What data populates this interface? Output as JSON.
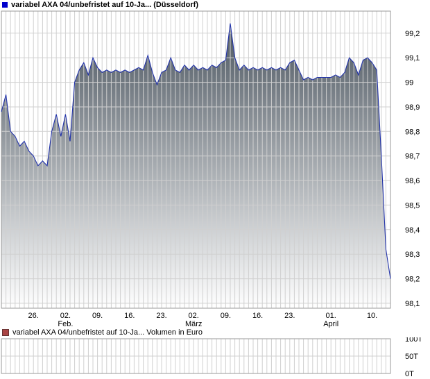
{
  "chart_data": [
    {
      "type": "area",
      "title": "variabel AXA 04/unbefristet auf 10-Ja... (Düsseldorf)",
      "xlabel": "",
      "ylabel": "",
      "grid": true,
      "legend_position": "top-left",
      "legend_color": "#0000cc",
      "line_color": "#2233aa",
      "fill_top": "#4d5761",
      "fill_bottom": "#ffffff",
      "grid_color": "#d0d0d0",
      "border_color": "#999999",
      "ylim": [
        98.08,
        99.29
      ],
      "x_domain_days": 85,
      "y_ticks": [
        {
          "v": 99.2,
          "label": "99,2"
        },
        {
          "v": 99.1,
          "label": "99,1"
        },
        {
          "v": 99.0,
          "label": "99"
        },
        {
          "v": 98.9,
          "label": "98,9"
        },
        {
          "v": 98.8,
          "label": "98,8"
        },
        {
          "v": 98.7,
          "label": "98,7"
        },
        {
          "v": 98.6,
          "label": "98,6"
        },
        {
          "v": 98.5,
          "label": "98,5"
        },
        {
          "v": 98.4,
          "label": "98,4"
        },
        {
          "v": 98.3,
          "label": "98,3"
        },
        {
          "v": 98.2,
          "label": "98,2"
        },
        {
          "v": 98.1,
          "label": "98,1"
        }
      ],
      "x_ticks": [
        {
          "d": 7,
          "label": "26."
        },
        {
          "d": 14,
          "label": "02."
        },
        {
          "d": 21,
          "label": "09."
        },
        {
          "d": 28,
          "label": "16."
        },
        {
          "d": 35,
          "label": "23."
        },
        {
          "d": 42,
          "label": "02."
        },
        {
          "d": 49,
          "label": "09."
        },
        {
          "d": 56,
          "label": "16."
        },
        {
          "d": 63,
          "label": "23."
        },
        {
          "d": 72,
          "label": "01."
        },
        {
          "d": 81,
          "label": "10."
        }
      ],
      "month_ticks": [
        {
          "d": 14,
          "label": "Feb."
        },
        {
          "d": 42,
          "label": "März"
        },
        {
          "d": 72,
          "label": "April"
        }
      ],
      "points": [
        [
          0,
          98.88
        ],
        [
          1,
          98.95
        ],
        [
          2,
          98.8
        ],
        [
          3,
          98.78
        ],
        [
          4,
          98.74
        ],
        [
          5,
          98.76
        ],
        [
          6,
          98.72
        ],
        [
          7,
          98.7
        ],
        [
          8,
          98.66
        ],
        [
          9,
          98.68
        ],
        [
          10,
          98.66
        ],
        [
          11,
          98.8
        ],
        [
          12,
          98.87
        ],
        [
          13,
          98.78
        ],
        [
          14,
          98.87
        ],
        [
          15,
          98.76
        ],
        [
          16,
          99.0
        ],
        [
          17,
          99.05
        ],
        [
          18,
          99.08
        ],
        [
          19,
          99.03
        ],
        [
          20,
          99.1
        ],
        [
          21,
          99.06
        ],
        [
          22,
          99.04
        ],
        [
          23,
          99.05
        ],
        [
          24,
          99.04
        ],
        [
          25,
          99.05
        ],
        [
          26,
          99.04
        ],
        [
          27,
          99.05
        ],
        [
          28,
          99.04
        ],
        [
          29,
          99.05
        ],
        [
          30,
          99.06
        ],
        [
          31,
          99.05
        ],
        [
          32,
          99.11
        ],
        [
          33,
          99.04
        ],
        [
          34,
          98.99
        ],
        [
          35,
          99.04
        ],
        [
          36,
          99.05
        ],
        [
          37,
          99.1
        ],
        [
          38,
          99.05
        ],
        [
          39,
          99.04
        ],
        [
          40,
          99.07
        ],
        [
          41,
          99.05
        ],
        [
          42,
          99.07
        ],
        [
          43,
          99.05
        ],
        [
          44,
          99.06
        ],
        [
          45,
          99.05
        ],
        [
          46,
          99.07
        ],
        [
          47,
          99.06
        ],
        [
          48,
          99.08
        ],
        [
          49,
          99.09
        ],
        [
          50,
          99.24
        ],
        [
          51,
          99.1
        ],
        [
          52,
          99.05
        ],
        [
          53,
          99.07
        ],
        [
          54,
          99.05
        ],
        [
          55,
          99.06
        ],
        [
          56,
          99.05
        ],
        [
          57,
          99.06
        ],
        [
          58,
          99.05
        ],
        [
          59,
          99.06
        ],
        [
          60,
          99.05
        ],
        [
          61,
          99.06
        ],
        [
          62,
          99.05
        ],
        [
          63,
          99.08
        ],
        [
          64,
          99.09
        ],
        [
          65,
          99.05
        ],
        [
          66,
          99.01
        ],
        [
          67,
          99.02
        ],
        [
          68,
          99.01
        ],
        [
          69,
          99.02
        ],
        [
          70,
          99.02
        ],
        [
          71,
          99.02
        ],
        [
          72,
          99.02
        ],
        [
          73,
          99.03
        ],
        [
          74,
          99.02
        ],
        [
          75,
          99.04
        ],
        [
          76,
          99.1
        ],
        [
          77,
          99.08
        ],
        [
          78,
          99.03
        ],
        [
          79,
          99.09
        ],
        [
          80,
          99.1
        ],
        [
          81,
          99.08
        ],
        [
          82,
          99.05
        ],
        [
          83,
          98.7
        ],
        [
          84,
          98.32
        ],
        [
          85,
          98.2
        ]
      ]
    },
    {
      "type": "bar",
      "title": "variabel AXA 04/unbefristet auf 10-Ja... Volumen in Euro",
      "xlabel": "",
      "ylabel": "",
      "grid": true,
      "legend_color": "#aa4444",
      "legend_border": "#663333",
      "grid_color": "#d0d0d0",
      "border_color": "#999999",
      "ylim": [
        0,
        100000
      ],
      "x_domain_days": 85,
      "y_ticks": [
        {
          "v": 100000,
          "label": "100T"
        },
        {
          "v": 50000,
          "label": "50T"
        },
        {
          "v": 0,
          "label": "0T"
        }
      ],
      "values": []
    }
  ]
}
